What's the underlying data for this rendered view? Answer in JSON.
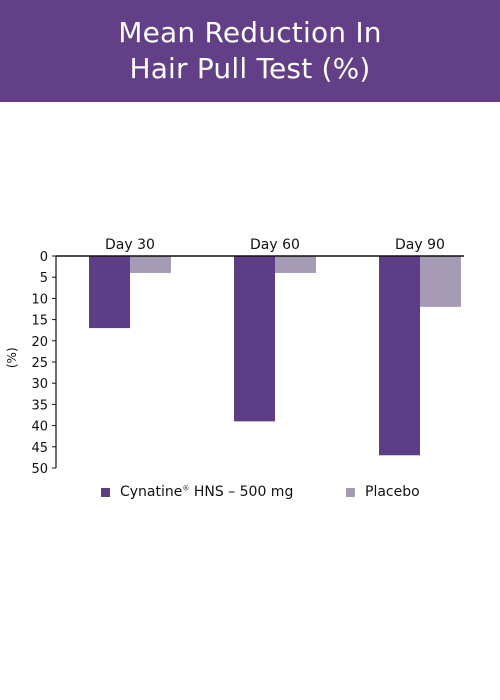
{
  "header": {
    "title_line1": "Mean Reduction In",
    "title_line2": "Hair Pull Test (%)",
    "background": "#623f87"
  },
  "chart_data": {
    "type": "bar",
    "categories": [
      "Day 30",
      "Day 60",
      "Day 90"
    ],
    "series": [
      {
        "name": "Cynatine® HNS – 500 mg",
        "values": [
          17,
          39,
          47
        ],
        "color": "#5e3d87"
      },
      {
        "name": "Placebo",
        "values": [
          4,
          4,
          12
        ],
        "color": "#a59bb5"
      }
    ],
    "ylabel": "(%)",
    "ylim": [
      0,
      50
    ],
    "yticks": [
      0,
      5,
      10,
      15,
      20,
      25,
      30,
      35,
      40,
      45,
      50
    ],
    "y_axis_inverted": true,
    "category_labels_position": "top",
    "grid": false,
    "legend_position": "bottom"
  },
  "legend": {
    "item1_name": "Cynatine",
    "item1_reg": "®",
    "item1_rest": " HNS – 500 mg",
    "item2_name": "Placebo"
  }
}
